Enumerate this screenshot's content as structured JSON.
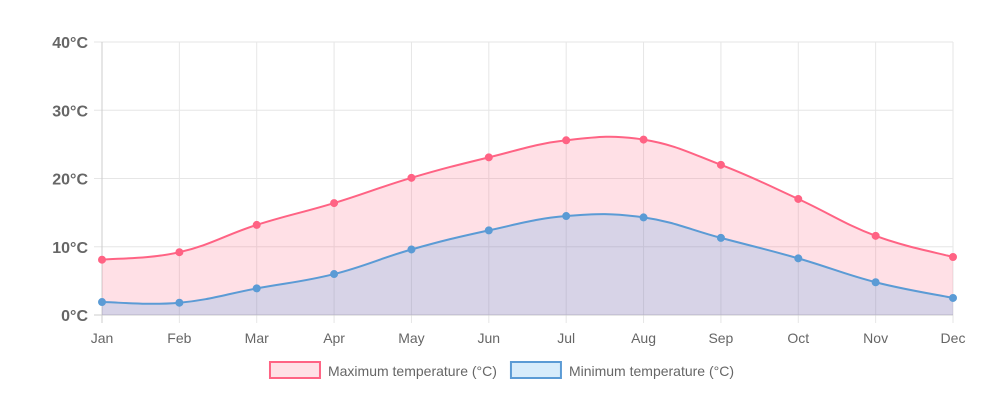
{
  "chart_data": {
    "type": "area",
    "categories": [
      "Jan",
      "Feb",
      "Mar",
      "Apr",
      "May",
      "Jun",
      "Jul",
      "Aug",
      "Sep",
      "Oct",
      "Nov",
      "Dec"
    ],
    "series": [
      {
        "name": "Maximum temperature (°C)",
        "values": [
          8.1,
          9.2,
          13.2,
          16.4,
          20.1,
          23.1,
          25.6,
          25.7,
          22.0,
          17.0,
          11.6,
          8.5
        ],
        "line_color": "#ff6384",
        "fill_color": "rgba(255,99,132,0.2)"
      },
      {
        "name": "Minimum temperature (°C)",
        "values": [
          1.9,
          1.8,
          3.9,
          6.0,
          9.6,
          12.4,
          14.5,
          14.3,
          11.3,
          8.3,
          4.8,
          2.5
        ],
        "line_color": "#5b9bd5",
        "fill_color": "rgba(54,162,235,0.2)"
      }
    ],
    "yticks": [
      "0°C",
      "10°C",
      "20°C",
      "30°C",
      "40°C"
    ],
    "ytick_values": [
      0,
      10,
      20,
      30,
      40
    ],
    "ylim": [
      0,
      40
    ],
    "grid": true,
    "legend_position": "bottom"
  }
}
